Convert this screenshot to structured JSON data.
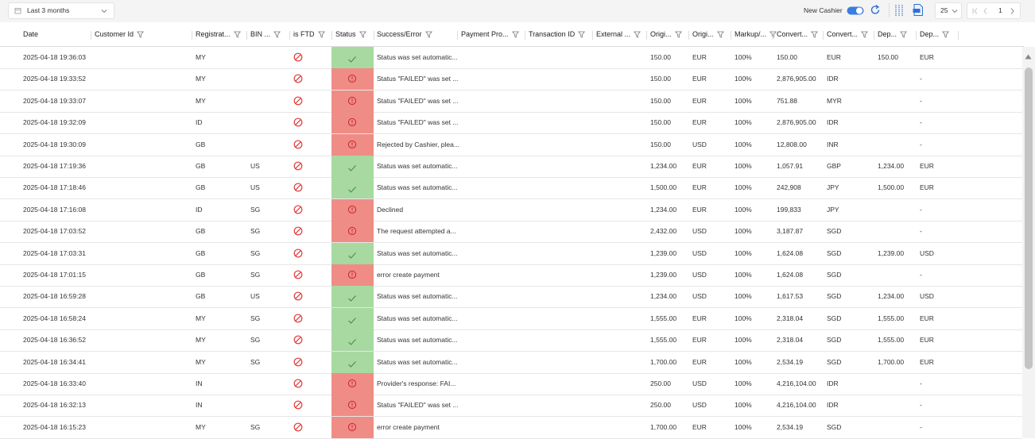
{
  "toolbar": {
    "date_range": "Last 3 months",
    "new_cashier_label": "New Cashier",
    "page_size": 25,
    "page": 1
  },
  "table": {
    "columns": [
      "Date",
      "Customer Id",
      "Registrat...",
      "BIN ...",
      "is FTD",
      "Status",
      "Success/Error",
      "Payment Pro...",
      "Transaction ID",
      "External ...",
      "Origi...",
      "Origi...",
      "Markup/...",
      "Convert...",
      "Convert...",
      "Dep...",
      "Dep..."
    ],
    "rows": [
      {
        "status": "success",
        "cells": [
          "2025-04-18 19:36:03",
          null,
          "MY",
          null,
          null,
          null,
          "Status was set automatic...",
          null,
          null,
          null,
          "150.00",
          "EUR",
          "100%",
          "150.00",
          "EUR",
          "150.00",
          "EUR"
        ]
      },
      {
        "status": "failed",
        "cells": [
          "2025-04-18 19:33:52",
          null,
          "MY",
          null,
          null,
          null,
          "Status \"FAILED\" was set ...",
          null,
          null,
          null,
          "150.00",
          "EUR",
          "100%",
          "2,876,905.00",
          "IDR",
          null,
          "-"
        ]
      },
      {
        "status": "failed",
        "cells": [
          "2025-04-18 19:33:07",
          null,
          "MY",
          null,
          null,
          null,
          "Status \"FAILED\" was set ...",
          null,
          null,
          null,
          "150.00",
          "EUR",
          "100%",
          "751.88",
          "MYR",
          null,
          "-"
        ]
      },
      {
        "status": "failed",
        "cells": [
          "2025-04-18 19:32:09",
          null,
          "ID",
          null,
          null,
          null,
          "Status \"FAILED\" was set ...",
          null,
          null,
          null,
          "150.00",
          "EUR",
          "100%",
          "2,876,905.00",
          "IDR",
          null,
          "-"
        ]
      },
      {
        "status": "failed",
        "cells": [
          "2025-04-18 19:30:09",
          null,
          "GB",
          null,
          null,
          null,
          "Rejected by Cashier, plea...",
          null,
          null,
          null,
          "150.00",
          "USD",
          "100%",
          "12,808.00",
          "INR",
          null,
          "-"
        ]
      },
      {
        "status": "success",
        "cells": [
          "2025-04-18 17:19:36",
          null,
          "GB",
          "US",
          null,
          null,
          "Status was set automatic...",
          null,
          null,
          null,
          "1,234.00",
          "EUR",
          "100%",
          "1,057.91",
          "GBP",
          "1,234.00",
          "EUR"
        ]
      },
      {
        "status": "success",
        "cells": [
          "2025-04-18 17:18:46",
          null,
          "GB",
          "US",
          null,
          null,
          "Status was set automatic...",
          null,
          null,
          null,
          "1,500.00",
          "EUR",
          "100%",
          "242,908",
          "JPY",
          "1,500.00",
          "EUR"
        ]
      },
      {
        "status": "failed",
        "cells": [
          "2025-04-18 17:16:08",
          null,
          "ID",
          "SG",
          null,
          null,
          "Declined",
          null,
          null,
          null,
          "1,234.00",
          "EUR",
          "100%",
          "199,833",
          "JPY",
          null,
          "-"
        ]
      },
      {
        "status": "failed",
        "cells": [
          "2025-04-18 17:03:52",
          null,
          "GB",
          "SG",
          null,
          null,
          "The request attempted a...",
          null,
          null,
          null,
          "2,432.00",
          "USD",
          "100%",
          "3,187.87",
          "SGD",
          null,
          "-"
        ]
      },
      {
        "status": "success",
        "cells": [
          "2025-04-18 17:03:31",
          null,
          "GB",
          "SG",
          null,
          null,
          "Status was set automatic...",
          null,
          null,
          null,
          "1,239.00",
          "USD",
          "100%",
          "1,624.08",
          "SGD",
          "1,239.00",
          "USD"
        ]
      },
      {
        "status": "failed",
        "cells": [
          "2025-04-18 17:01:15",
          null,
          "GB",
          "SG",
          null,
          null,
          "error create payment",
          null,
          null,
          null,
          "1,239.00",
          "USD",
          "100%",
          "1,624.08",
          "SGD",
          null,
          "-"
        ]
      },
      {
        "status": "success",
        "cells": [
          "2025-04-18 16:59:28",
          null,
          "GB",
          "US",
          null,
          null,
          "Status was set automatic...",
          null,
          null,
          null,
          "1,234.00",
          "USD",
          "100%",
          "1,617.53",
          "SGD",
          "1,234.00",
          "USD"
        ]
      },
      {
        "status": "success",
        "cells": [
          "2025-04-18 16:58:24",
          null,
          "MY",
          "SG",
          null,
          null,
          "Status was set automatic...",
          null,
          null,
          null,
          "1,555.00",
          "EUR",
          "100%",
          "2,318.04",
          "SGD",
          "1,555.00",
          "EUR"
        ]
      },
      {
        "status": "success",
        "cells": [
          "2025-04-18 16:36:52",
          null,
          "MY",
          "SG",
          null,
          null,
          "Status was set automatic...",
          null,
          null,
          null,
          "1,555.00",
          "EUR",
          "100%",
          "2,318.04",
          "SGD",
          "1,555.00",
          "EUR"
        ]
      },
      {
        "status": "success",
        "cells": [
          "2025-04-18 16:34:41",
          null,
          "MY",
          "SG",
          null,
          null,
          "Status was set automatic...",
          null,
          null,
          null,
          "1,700.00",
          "EUR",
          "100%",
          "2,534.19",
          "SGD",
          "1,700.00",
          "EUR"
        ]
      },
      {
        "status": "failed",
        "cells": [
          "2025-04-18 16:33:40",
          null,
          "IN",
          null,
          null,
          null,
          "Provider's response: FAI...",
          null,
          null,
          null,
          "250.00",
          "USD",
          "100%",
          "4,216,104.00",
          "IDR",
          null,
          "-"
        ]
      },
      {
        "status": "failed",
        "cells": [
          "2025-04-18 16:32:13",
          null,
          "IN",
          null,
          null,
          null,
          "Status \"FAILED\" was set ...",
          null,
          null,
          null,
          "250.00",
          "USD",
          "100%",
          "4,216,104.00",
          "IDR",
          null,
          "-"
        ]
      },
      {
        "status": "failed",
        "cells": [
          "2025-04-18 16:15:23",
          null,
          "MY",
          "SG",
          null,
          null,
          "error create payment",
          null,
          null,
          null,
          "1,700.00",
          "EUR",
          "100%",
          "2,534.19",
          "SGD",
          null,
          "-"
        ]
      }
    ]
  }
}
